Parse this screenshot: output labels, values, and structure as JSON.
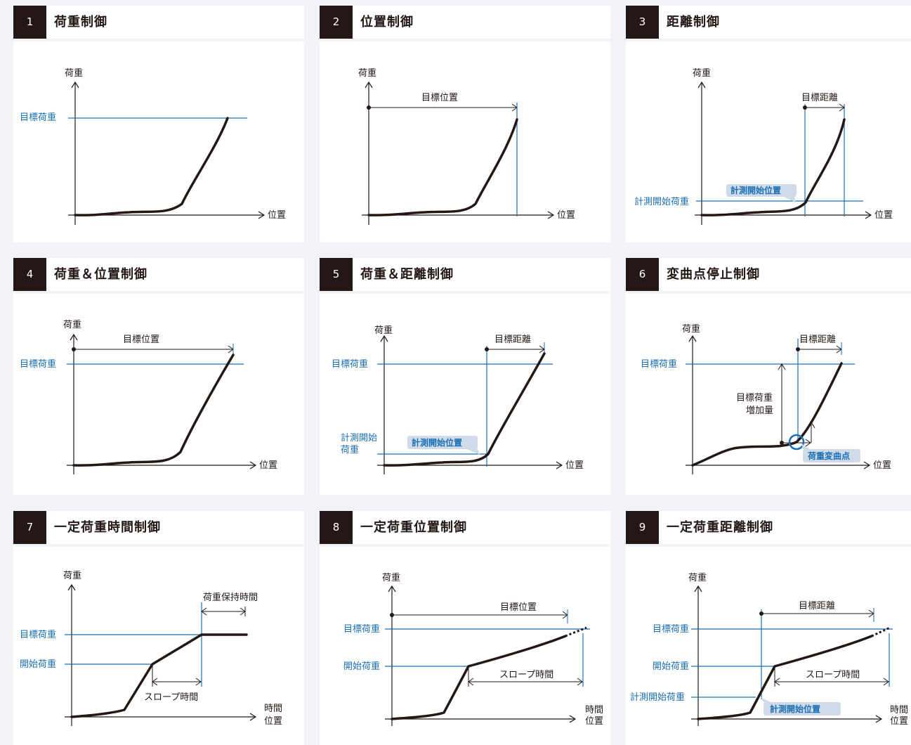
{
  "panels": [
    {
      "num": "1",
      "title": "荷重制御"
    },
    {
      "num": "2",
      "title": "位置制御"
    },
    {
      "num": "3",
      "title": "距離制御"
    },
    {
      "num": "4",
      "title": "荷重＆位置制御"
    },
    {
      "num": "5",
      "title": "荷重＆距離制御"
    },
    {
      "num": "6",
      "title": "変曲点停止制御"
    },
    {
      "num": "7",
      "title": "一定荷重時間制御"
    },
    {
      "num": "8",
      "title": "一定荷重位置制御"
    },
    {
      "num": "9",
      "title": "一定荷重距離制御"
    }
  ],
  "labels": {
    "load": "荷重",
    "position": "位置",
    "time": "時間",
    "target_load": "目標荷重",
    "target_position": "目標位置",
    "target_distance": "目標距離",
    "measure_start_position": "計測開始位置",
    "measure_start_load": "計測開始荷重",
    "measure_start_load_l1": "計測開始",
    "measure_start_load_l2": "荷重",
    "start_load": "開始荷重",
    "target_load_increase_l1": "目標荷重",
    "target_load_increase_l2": "増加量",
    "inflection_point": "荷重変曲点",
    "load_hold_time": "荷重保持時間",
    "slope_time": "スロープ時間"
  },
  "colors": {
    "accent": "#1a6fb5",
    "ink": "#231815",
    "badge": "#cfdbe8"
  }
}
